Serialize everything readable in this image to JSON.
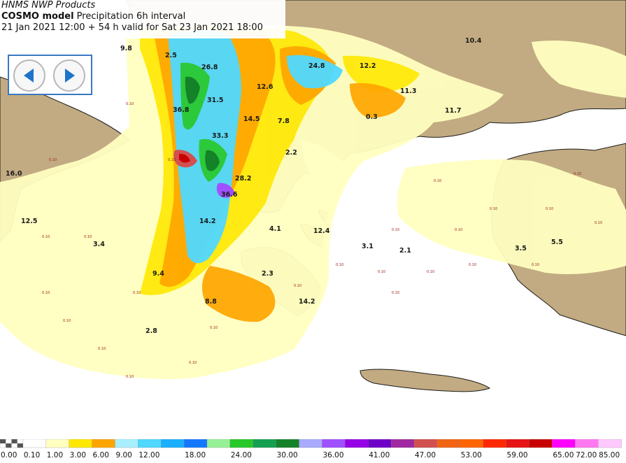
{
  "header": {
    "line1": "HNMS NWP Products",
    "model_bold": "COSMO model",
    "model_rest": " Precipitation 6h interval",
    "line3": "21 Jan 2021 12:00 + 54 h valid for Sat 23 Jan 2021 18:00"
  },
  "nav": {
    "prev_icon": "arrow-left-icon",
    "next_icon": "arrow-right-icon"
  },
  "map_values": [
    "10.4",
    "12.2",
    "24.8",
    "11.3",
    "11.7",
    "0.3",
    "14.5",
    "7.8",
    "12.6",
    "2.2",
    "28.2",
    "14.2",
    "4.1",
    "12.4",
    "3.1",
    "2.1",
    "3.5",
    "5.5",
    "9.4",
    "8.8",
    "2.8",
    "3.4",
    "2.3",
    "14.2",
    "36.8",
    "31.5",
    "33.3",
    "26.8",
    "2.5",
    "9.8",
    "12.5",
    "16.0",
    "36.6"
  ],
  "map_min_label": "0.10",
  "legend": {
    "colors": [
      "#555555",
      "#ffffff",
      "#ffffc0",
      "#ffe800",
      "#ffa500",
      "#a8f0ff",
      "#50d8ff",
      "#1ab0ff",
      "#1478ff",
      "#96f096",
      "#28c828",
      "#14a050",
      "#148228",
      "#aaaaff",
      "#a050ff",
      "#9600e6",
      "#6e00c8",
      "#a028a0",
      "#d25050",
      "#f06414",
      "#ff6400",
      "#ff2800",
      "#e61414",
      "#c80000",
      "#ff00ff",
      "#ff78f0",
      "#ffc8ff"
    ],
    "labels": [
      "0.00",
      "0.10",
      "1.00",
      "3.00",
      "6.00",
      "9.00",
      "12.00",
      "18.00",
      "24.00",
      "30.00",
      "36.00",
      "41.00",
      "47.00",
      "53.00",
      "59.00",
      "65.00",
      "72.00",
      "85.00"
    ]
  },
  "colors": {
    "land": "#c2ab82",
    "sea": "#ffffff",
    "accent": "#3a78c0"
  }
}
